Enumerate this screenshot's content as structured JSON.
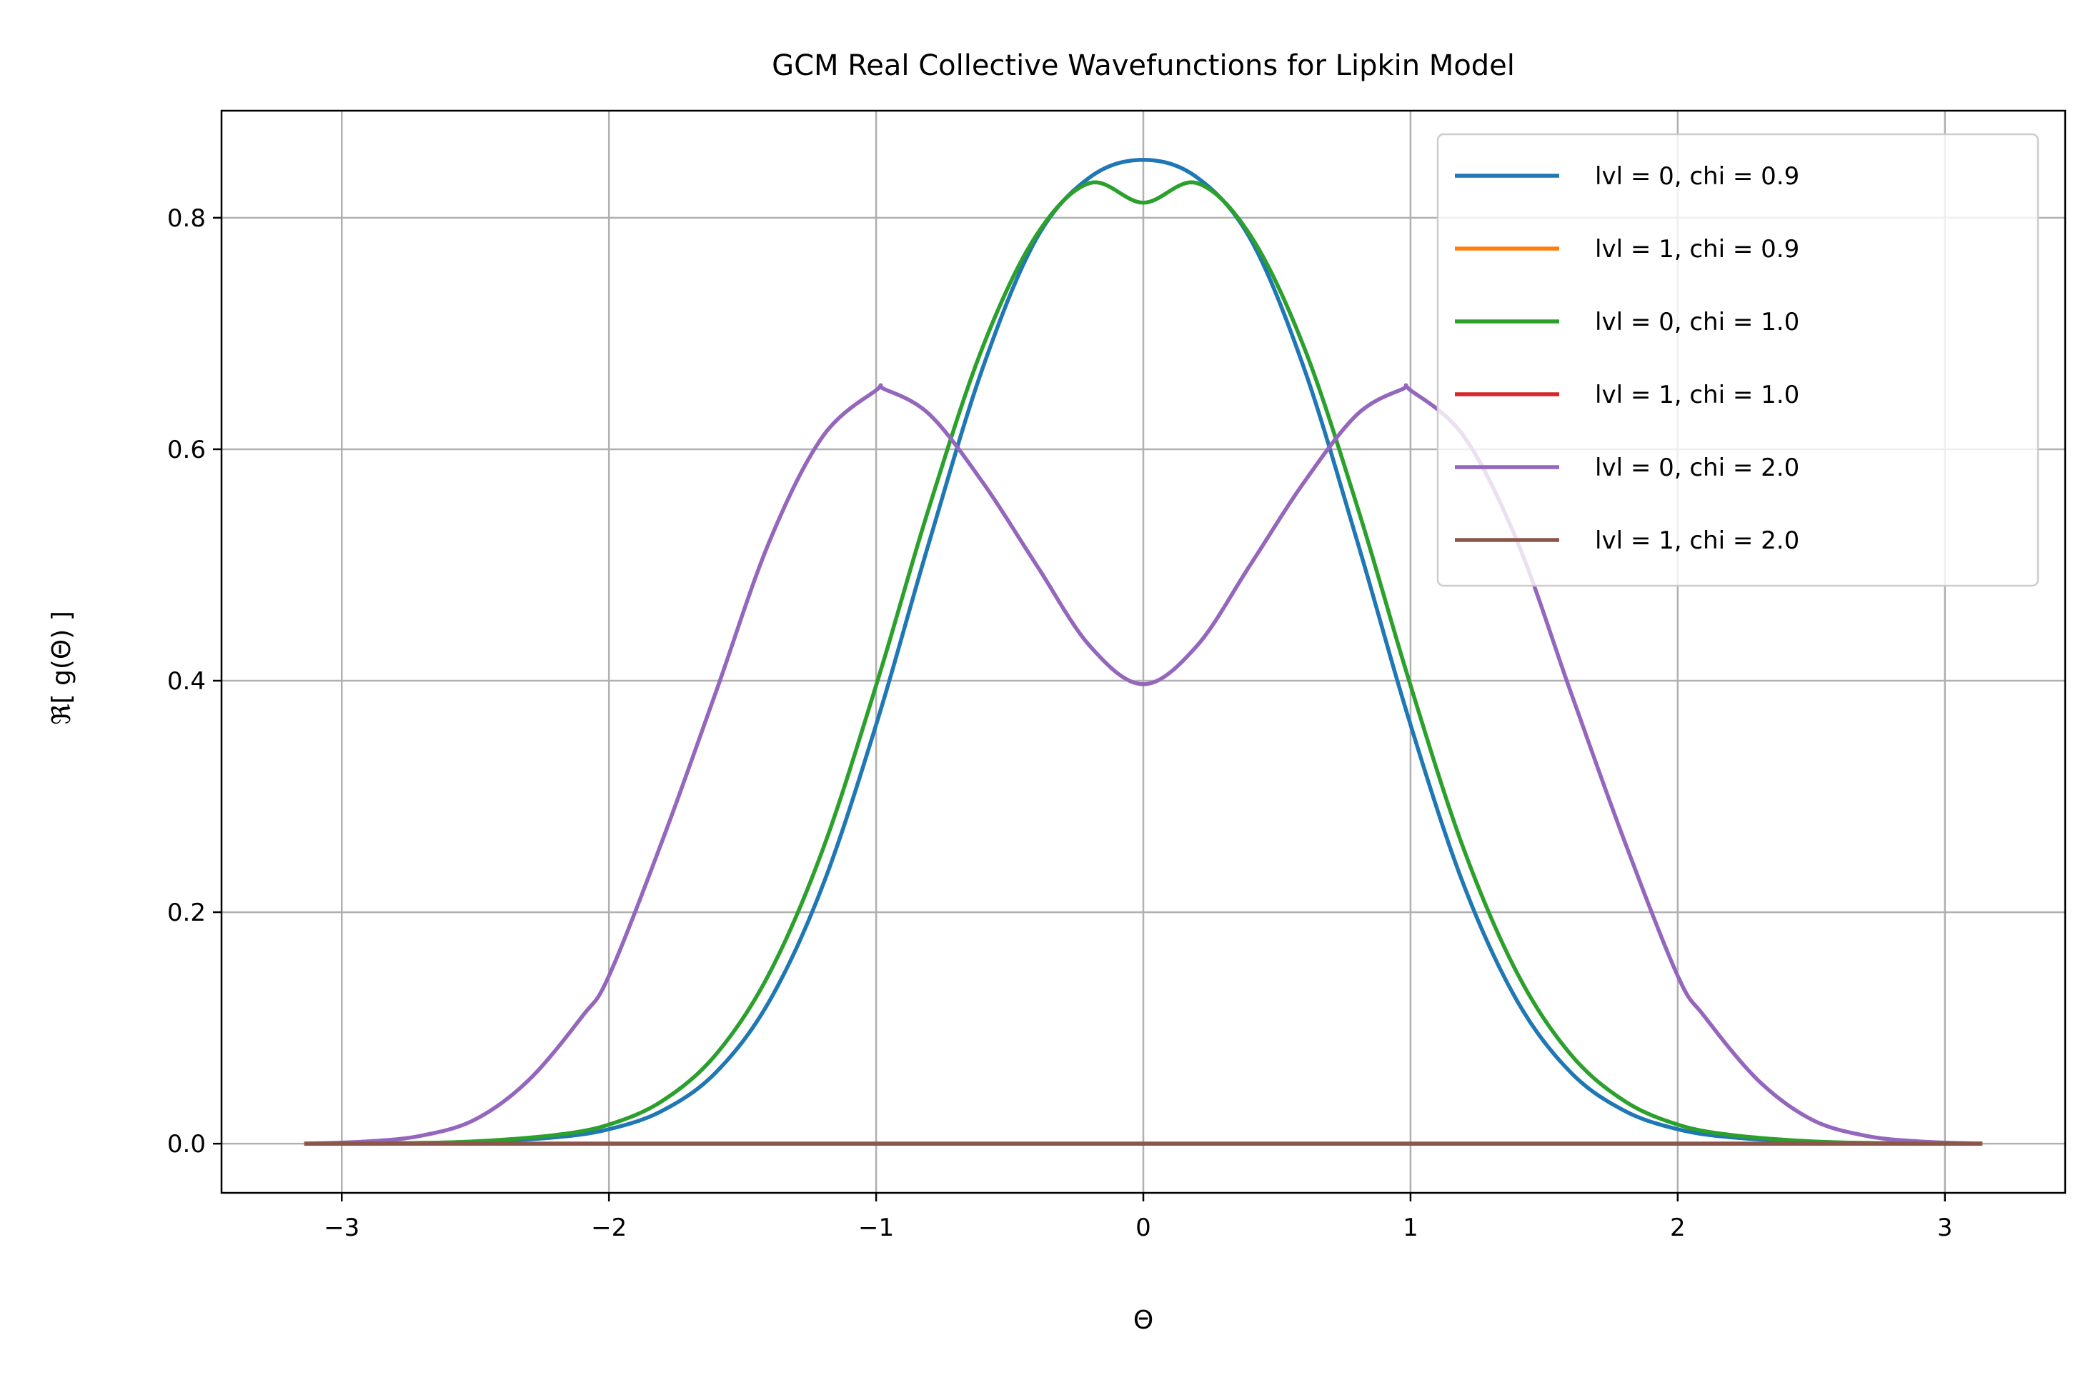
{
  "chart_data": {
    "type": "line",
    "title": "GCM Real Collective Wavefunctions for Lipkin Model",
    "xlabel": "Θ",
    "ylabel": "ℜ[ g(Θ) ]",
    "xlim": [
      -3.45,
      3.45
    ],
    "ylim": [
      -0.0425,
      0.8925
    ],
    "xticks": [
      -3,
      -2,
      -1,
      0,
      1,
      2,
      3
    ],
    "xtick_labels": [
      "−3",
      "−2",
      "−1",
      "0",
      "1",
      "2",
      "3"
    ],
    "yticks": [
      0.0,
      0.2,
      0.4,
      0.6,
      0.8
    ],
    "ytick_labels": [
      "0.0",
      "0.2",
      "0.4",
      "0.6",
      "0.8"
    ],
    "grid": true,
    "legend_position": "upper-right",
    "x_range": [
      -3.14159,
      3.14159
    ],
    "series": [
      {
        "name": "lvl = 0, chi = 0.9",
        "color": "#1f77b4",
        "x": [
          -3.14,
          -2.8,
          -2.5,
          -2.2,
          -2.0,
          -1.8,
          -1.6,
          -1.4,
          -1.2,
          -1.0,
          -0.8,
          -0.6,
          -0.4,
          -0.2,
          0.0,
          0.2,
          0.4,
          0.6,
          0.8,
          1.0,
          1.2,
          1.4,
          1.6,
          1.8,
          2.0,
          2.2,
          2.5,
          2.8,
          3.14
        ],
        "y": [
          0.0,
          0.0003,
          0.0016,
          0.0055,
          0.0125,
          0.0285,
          0.0615,
          0.123,
          0.223,
          0.362,
          0.521,
          0.671,
          0.782,
          0.835,
          0.85,
          0.835,
          0.782,
          0.671,
          0.521,
          0.362,
          0.223,
          0.123,
          0.0615,
          0.0285,
          0.0125,
          0.0055,
          0.0016,
          0.0003,
          0.0
        ]
      },
      {
        "name": "lvl = 1, chi = 0.9",
        "color": "#ff7f0e",
        "x": [
          -3.14,
          3.14
        ],
        "y": [
          0.0,
          0.0
        ]
      },
      {
        "name": "lvl = 0, chi = 1.0",
        "color": "#2ca02c",
        "x": [
          -3.14,
          -2.8,
          -2.5,
          -2.2,
          -2.0,
          -1.8,
          -1.6,
          -1.4,
          -1.2,
          -1.0,
          -0.8,
          -0.6,
          -0.4,
          -0.2,
          0.0,
          0.2,
          0.4,
          0.6,
          0.8,
          1.0,
          1.2,
          1.4,
          1.6,
          1.8,
          2.0,
          2.2,
          2.5,
          2.8,
          3.14
        ],
        "y": [
          0.0,
          0.0004,
          0.002,
          0.0075,
          0.0165,
          0.037,
          0.077,
          0.147,
          0.254,
          0.396,
          0.551,
          0.689,
          0.785,
          0.83,
          0.813,
          0.83,
          0.785,
          0.689,
          0.551,
          0.396,
          0.254,
          0.147,
          0.077,
          0.037,
          0.0165,
          0.0075,
          0.002,
          0.0004,
          0.0
        ]
      },
      {
        "name": "lvl = 1, chi = 1.0",
        "color": "#d62728",
        "x": [
          -3.14,
          3.14
        ],
        "y": [
          0.0,
          0.0
        ]
      },
      {
        "name": "lvl = 0, chi = 2.0",
        "color": "#9467bd",
        "x": [
          -3.14,
          -2.9,
          -2.7,
          -2.5,
          -2.3,
          -2.1,
          -2.0,
          -1.8,
          -1.6,
          -1.4,
          -1.2,
          -1.0,
          -0.97,
          -0.8,
          -0.6,
          -0.4,
          -0.2,
          0.0,
          0.2,
          0.4,
          0.6,
          0.8,
          0.97,
          1.0,
          1.2,
          1.4,
          1.6,
          1.8,
          2.0,
          2.1,
          2.3,
          2.5,
          2.7,
          2.9,
          3.14
        ],
        "y": [
          0.0,
          0.002,
          0.007,
          0.021,
          0.055,
          0.11,
          0.145,
          0.262,
          0.39,
          0.52,
          0.611,
          0.651,
          0.652,
          0.63,
          0.571,
          0.5,
          0.43,
          0.397,
          0.43,
          0.5,
          0.571,
          0.63,
          0.652,
          0.651,
          0.611,
          0.52,
          0.39,
          0.262,
          0.145,
          0.11,
          0.055,
          0.021,
          0.007,
          0.002,
          0.0
        ]
      },
      {
        "name": "lvl = 1, chi = 2.0",
        "color": "#8c564b",
        "x": [
          -3.14,
          3.14
        ],
        "y": [
          0.0,
          0.0
        ]
      }
    ]
  }
}
